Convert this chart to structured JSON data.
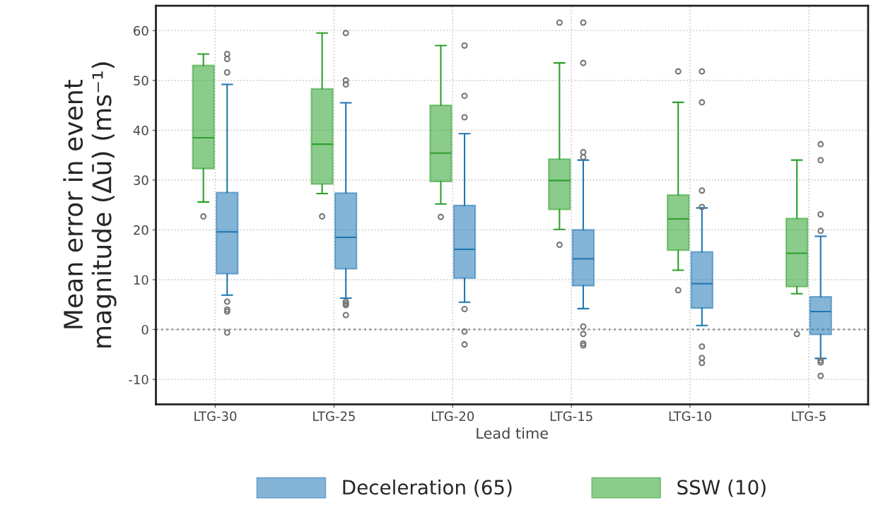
{
  "chart_data": {
    "type": "box",
    "xlabel": "Lead time",
    "ylabel": "Mean error in event\nmagnitude (Δū) (ms⁻¹)",
    "categories": [
      "LTG-30",
      "LTG-25",
      "LTG-20",
      "LTG-15",
      "LTG-10",
      "LTG-5"
    ],
    "ylim": [
      -15,
      65
    ],
    "yticks": [
      -10,
      0,
      10,
      20,
      30,
      40,
      50,
      60
    ],
    "grid": true,
    "legend": "bottom",
    "ref_lines": [
      {
        "axis": "y",
        "value": 0,
        "color": "#999999",
        "line_style": "dotted"
      }
    ],
    "series": [
      {
        "name": "Deceleration (65)",
        "color": "#1f77b4",
        "boxes": [
          {
            "low": 6.9,
            "q1": 11.2,
            "median": 19.6,
            "q3": 27.5,
            "high": 49.2,
            "outliers": [
              55.3,
              54.3,
              51.6,
              5.6,
              4.0,
              3.6,
              -0.6
            ]
          },
          {
            "low": 6.3,
            "q1": 12.2,
            "median": 18.5,
            "q3": 27.4,
            "high": 45.5,
            "outliers": [
              59.5,
              50.0,
              49.2,
              5.6,
              5.2,
              4.9,
              2.9
            ]
          },
          {
            "low": 5.5,
            "q1": 10.3,
            "median": 16.1,
            "q3": 24.9,
            "high": 39.3,
            "outliers": [
              57.0,
              46.9,
              42.6,
              4.1,
              -0.4,
              -3.0
            ]
          },
          {
            "low": 4.2,
            "q1": 8.8,
            "median": 14.2,
            "q3": 20.0,
            "high": 34.0,
            "outliers": [
              61.6,
              53.5,
              35.6,
              34.6,
              0.6,
              -0.9,
              -2.8,
              -3.2
            ]
          },
          {
            "low": 0.8,
            "q1": 4.3,
            "median": 9.2,
            "q3": 15.6,
            "high": 24.4,
            "outliers": [
              51.8,
              45.6,
              27.9,
              24.6,
              -3.4,
              -5.7,
              -6.7
            ]
          },
          {
            "low": -5.8,
            "q1": -1.0,
            "median": 3.6,
            "q3": 6.6,
            "high": 18.7,
            "outliers": [
              37.2,
              34.0,
              23.1,
              19.8,
              -6.2,
              -6.6,
              -9.3
            ]
          }
        ]
      },
      {
        "name": "SSW (10)",
        "color": "#2ca02c",
        "boxes": [
          {
            "low": 25.6,
            "q1": 32.3,
            "median": 38.5,
            "q3": 53.0,
            "high": 55.3,
            "outliers": [
              22.7
            ]
          },
          {
            "low": 27.3,
            "q1": 29.2,
            "median": 37.2,
            "q3": 48.3,
            "high": 59.5,
            "outliers": [
              22.7
            ]
          },
          {
            "low": 25.2,
            "q1": 29.7,
            "median": 35.4,
            "q3": 45.0,
            "high": 57.0,
            "outliers": [
              22.6
            ]
          },
          {
            "low": 20.1,
            "q1": 24.1,
            "median": 29.9,
            "q3": 34.2,
            "high": 53.5,
            "outliers": [
              61.6,
              17.0
            ]
          },
          {
            "low": 11.9,
            "q1": 15.9,
            "median": 22.2,
            "q3": 27.0,
            "high": 45.6,
            "outliers": [
              51.8,
              7.9
            ]
          },
          {
            "low": 7.2,
            "q1": 8.6,
            "median": 15.3,
            "q3": 22.3,
            "high": 34.0,
            "outliers": [
              -0.9
            ]
          }
        ]
      }
    ]
  }
}
